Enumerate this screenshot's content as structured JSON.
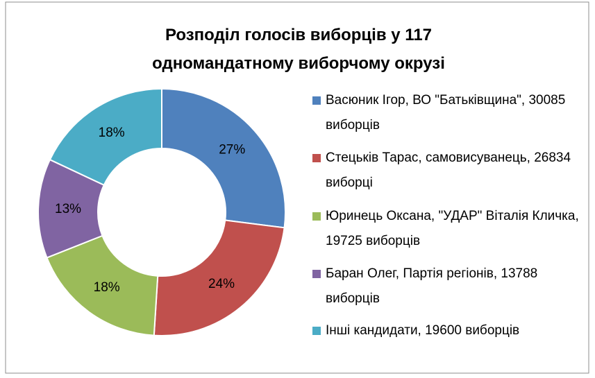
{
  "chart_data": {
    "type": "donut",
    "title": [
      "Розподіл голосів виборців у 117",
      "одномандатному виборчому окрузі"
    ],
    "series": [
      {
        "name": "Васюник Ігор, ВО \"Батьківщина\", 30085 виборців",
        "color": "#4f81bd"
      },
      {
        "name": "Стецьків Тарас, самовисуванець, 26834 виборці",
        "color": "#c0504d"
      },
      {
        "name": "Юринець Оксана, \"УДАР\" Віталія Кличка, 19725 виборців",
        "color": "#9bbb59"
      },
      {
        "name": "Баран Олег, Партія регіонів, 13788 виборців",
        "color": "#8064a2"
      },
      {
        "name": "Інші кандидати, 19600 виборців",
        "color": "#4bacc6"
      }
    ],
    "values": [
      27,
      24,
      18,
      13,
      18
    ],
    "value_labels": [
      "27%",
      "24%",
      "18%",
      "13%",
      "18%"
    ],
    "legend": "right"
  }
}
